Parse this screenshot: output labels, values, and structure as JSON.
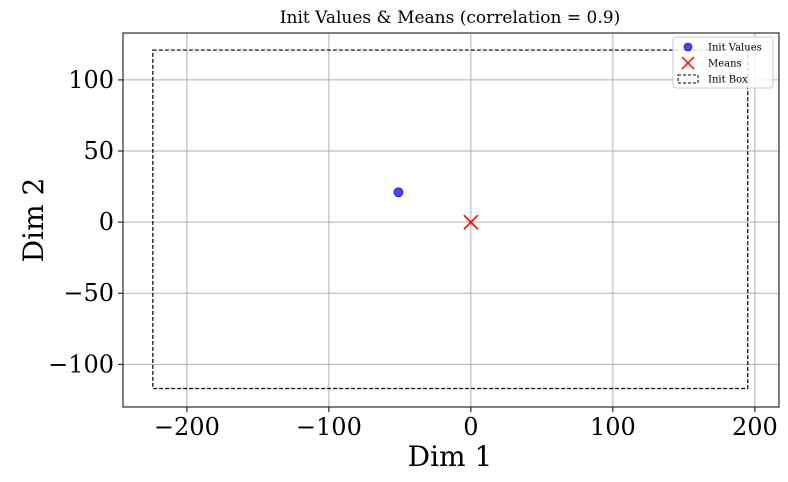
{
  "chart_data": {
    "type": "scatter",
    "title": "Init Values & Means (correlation = 0.9)",
    "xlabel": "Dim 1",
    "ylabel": "Dim 2",
    "xlim": [
      -245,
      217
    ],
    "ylim": [
      -130,
      133
    ],
    "xticks": [
      -200,
      -100,
      0,
      100,
      200
    ],
    "yticks": [
      -100,
      -50,
      0,
      50,
      100
    ],
    "xtick_labels": [
      "−200",
      "−100",
      "0",
      "100",
      "200"
    ],
    "ytick_labels": [
      "−100",
      "−50",
      "0",
      "50",
      "100"
    ],
    "grid": true,
    "legend_position": "top-right",
    "series": [
      {
        "name": "Init Values",
        "marker": "circle",
        "color": "#3333ee",
        "points": [
          [
            -51,
            21
          ]
        ]
      },
      {
        "name": "Means",
        "marker": "x",
        "color": "#ff0000",
        "points": [
          [
            0,
            0
          ]
        ]
      }
    ],
    "init_box": {
      "name": "Init Box",
      "x": [
        -224,
        195
      ],
      "y": [
        -117,
        121
      ],
      "color": "#000000"
    }
  }
}
